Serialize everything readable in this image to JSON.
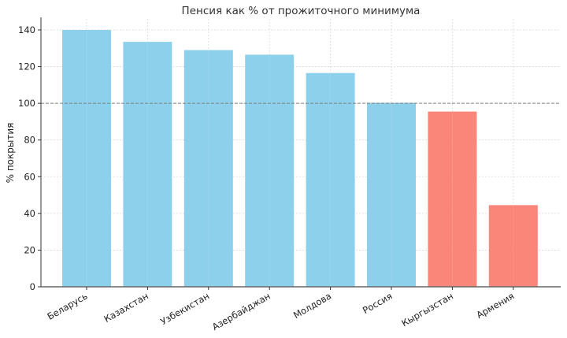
{
  "chart_data": {
    "type": "bar",
    "title": "Пенсия как % от прожиточного минимума",
    "xlabel": "",
    "ylabel": "% покрытия",
    "categories": [
      "Беларусь",
      "Казахстан",
      "Узбекистан",
      "Азербайджан",
      "Молдова",
      "Россия",
      "Кыргызстан",
      "Армения"
    ],
    "values": [
      140,
      133.5,
      129,
      126.5,
      116.5,
      100.3,
      95.5,
      44.5
    ],
    "bar_colors": [
      "#87CEEB",
      "#87CEEB",
      "#87CEEB",
      "#87CEEB",
      "#87CEEB",
      "#87CEEB",
      "#FA8072",
      "#FA8072"
    ],
    "ylim": [
      0,
      146
    ],
    "yticks": [
      0,
      20,
      40,
      60,
      80,
      100,
      120,
      140
    ],
    "grid": true,
    "reference_line": {
      "y": 100,
      "style": "dashed",
      "color": "#808080"
    },
    "legend": null
  },
  "colors": {
    "above_threshold": "#87CEEB",
    "below_threshold": "#FA8072",
    "grid": "#d9d9d9",
    "axis": "#333333"
  }
}
